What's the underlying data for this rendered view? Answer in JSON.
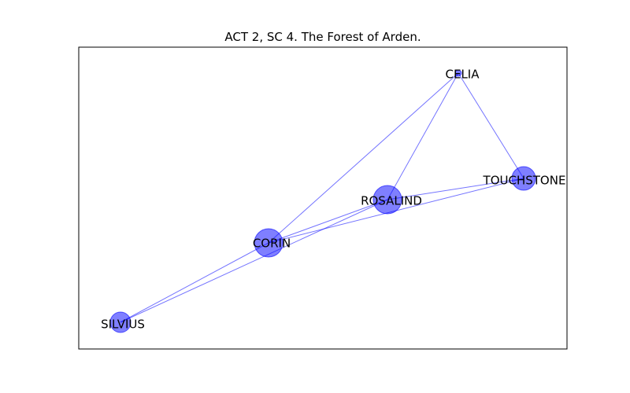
{
  "title": "ACT 2, SC 4. The Forest of Arden.",
  "colors": {
    "node_fill": "#0000ff",
    "node_opacity": 0.5,
    "edge": "#0000ff",
    "edge_opacity": 0.55,
    "frame": "#000000",
    "background": "#ffffff"
  },
  "nodes": [
    {
      "id": "CELIA",
      "label": "CELIA",
      "size": "small"
    },
    {
      "id": "TOUCHSTONE",
      "label": "TOUCHSTONE",
      "size": "medium"
    },
    {
      "id": "ROSALIND",
      "label": "ROSALIND",
      "size": "large"
    },
    {
      "id": "CORIN",
      "label": "CORIN",
      "size": "large"
    },
    {
      "id": "SILVIUS",
      "label": "SILVIUS",
      "size": "medium"
    }
  ],
  "edges": [
    [
      "CELIA",
      "TOUCHSTONE"
    ],
    [
      "CELIA",
      "ROSALIND"
    ],
    [
      "CELIA",
      "CORIN"
    ],
    [
      "ROSALIND",
      "TOUCHSTONE"
    ],
    [
      "CORIN",
      "TOUCHSTONE"
    ],
    [
      "CORIN",
      "ROSALIND"
    ],
    [
      "SILVIUS",
      "CORIN"
    ],
    [
      "SILVIUS",
      "ROSALIND"
    ]
  ]
}
